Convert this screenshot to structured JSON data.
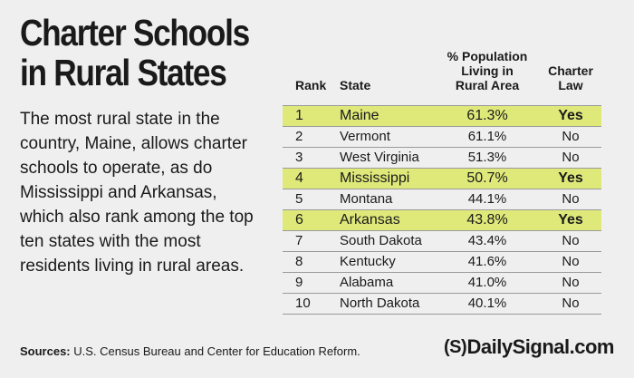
{
  "title_line1": "Charter Schools",
  "title_line2": "in Rural States",
  "description": "The most rural state in the country, Maine, allows charter schools to operate, as do Mississippi and Arkansas, which also rank among the top ten states with the most residents living in rural areas.",
  "sources_label": "Sources:",
  "sources_text": "U.S. Census Bureau and Center for Education Reform.",
  "brand": {
    "mark": "(S)",
    "name": "DailySignal.com"
  },
  "colors": {
    "highlight": "#dfe97a",
    "background": "#efefef",
    "text": "#1a1a1a"
  },
  "chart_data": {
    "type": "table",
    "title": "Charter Schools in Rural States",
    "columns": {
      "rank": "Rank",
      "state": "State",
      "pop_line1": "% Population",
      "pop_line2": "Living in",
      "pop_line3": "Rural Area",
      "law_line1": "Charter",
      "law_line2": "Law"
    },
    "rows": [
      {
        "rank": "1",
        "state": "Maine",
        "pct": "61.3%",
        "law": "Yes",
        "highlight": true
      },
      {
        "rank": "2",
        "state": "Vermont",
        "pct": "61.1%",
        "law": "No",
        "highlight": false
      },
      {
        "rank": "3",
        "state": "West Virginia",
        "pct": "51.3%",
        "law": "No",
        "highlight": false
      },
      {
        "rank": "4",
        "state": "Mississippi",
        "pct": "50.7%",
        "law": "Yes",
        "highlight": true
      },
      {
        "rank": "5",
        "state": "Montana",
        "pct": "44.1%",
        "law": "No",
        "highlight": false
      },
      {
        "rank": "6",
        "state": "Arkansas",
        "pct": "43.8%",
        "law": "Yes",
        "highlight": true
      },
      {
        "rank": "7",
        "state": "South Dakota",
        "pct": "43.4%",
        "law": "No",
        "highlight": false
      },
      {
        "rank": "8",
        "state": "Kentucky",
        "pct": "41.6%",
        "law": "No",
        "highlight": false
      },
      {
        "rank": "9",
        "state": "Alabama",
        "pct": "41.0%",
        "law": "No",
        "highlight": false
      },
      {
        "rank": "10",
        "state": "North Dakota",
        "pct": "40.1%",
        "law": "No",
        "highlight": false
      }
    ]
  }
}
